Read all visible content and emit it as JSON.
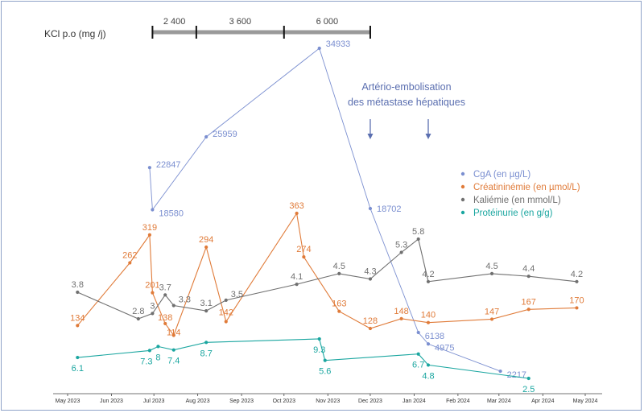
{
  "kcl": {
    "label": "KCl p.o (mg /j)",
    "segments": [
      {
        "value": "2 400",
        "from": "2023-06-30",
        "to": "2023-07-31"
      },
      {
        "value": "3 600",
        "from": "2023-07-31",
        "to": "2023-10-01"
      },
      {
        "value": "6 000",
        "from": "2023-10-01",
        "to": "2023-12-01"
      }
    ]
  },
  "annotation": {
    "line1": "Artério-embolisation",
    "line2": "des métastase hépatiques",
    "arrows": [
      "2023-12-01",
      "2024-01-11"
    ]
  },
  "chart_data": {
    "type": "line",
    "x_axis": {
      "type": "date",
      "ticks": [
        "2023-05-01",
        "2023-06-01",
        "2023-07-01",
        "2023-08-01",
        "2023-09-01",
        "2023-10-01",
        "2023-11-01",
        "2023-12-01",
        "2024-01-01",
        "2024-02-01",
        "2024-03-01",
        "2024-04-01",
        "2024-05-01"
      ],
      "tick_labels": [
        "May 2023",
        "Jun 2023",
        "Jul 2023",
        "Aug 2023",
        "Sep 2023",
        "Oct 2023",
        "Nov 2023",
        "Dec 2023",
        "Jan 2024",
        "Feb 2024",
        "Mar 2024",
        "Apr 2024",
        "May 2024"
      ]
    },
    "grid": false,
    "legend_position": "right",
    "series": [
      {
        "name": "CgA (en µg/L)",
        "color": "#7b8fd0",
        "points": [
          {
            "x": "2023-06-28",
            "y": 22847,
            "label": "22847"
          },
          {
            "x": "2023-06-30",
            "y": 18580,
            "label": "18580"
          },
          {
            "x": "2023-08-07",
            "y": 25959,
            "label": "25959"
          },
          {
            "x": "2023-10-26",
            "y": 34933,
            "label": "34933"
          },
          {
            "x": "2023-12-01",
            "y": 18702,
            "label": "18702"
          },
          {
            "x": "2024-01-04",
            "y": 6138,
            "label": "6138"
          },
          {
            "x": "2024-01-11",
            "y": 4975,
            "label": "4975"
          },
          {
            "x": "2024-03-02",
            "y": 2217,
            "label": "2217"
          }
        ]
      },
      {
        "name": "Créatininémie (en µmol/L)",
        "color": "#e07b39",
        "points": [
          {
            "x": "2023-05-08",
            "y": 134,
            "label": "134"
          },
          {
            "x": "2023-06-14",
            "y": 262,
            "label": "262"
          },
          {
            "x": "2023-06-28",
            "y": 319,
            "label": "319"
          },
          {
            "x": "2023-06-30",
            "y": 201,
            "label": "201"
          },
          {
            "x": "2023-07-09",
            "y": 138,
            "label": "138"
          },
          {
            "x": "2023-07-15",
            "y": 114,
            "label": "114"
          },
          {
            "x": "2023-08-07",
            "y": 294,
            "label": "294"
          },
          {
            "x": "2023-08-21",
            "y": 142,
            "label": "142"
          },
          {
            "x": "2023-10-10",
            "y": 363,
            "label": "363"
          },
          {
            "x": "2023-10-15",
            "y": 274,
            "label": "274"
          },
          {
            "x": "2023-11-09",
            "y": 163,
            "label": "163"
          },
          {
            "x": "2023-12-01",
            "y": 128,
            "label": "128"
          },
          {
            "x": "2023-12-23",
            "y": 148,
            "label": "148"
          },
          {
            "x": "2024-01-11",
            "y": 140,
            "label": "140"
          },
          {
            "x": "2024-02-25",
            "y": 147,
            "label": "147"
          },
          {
            "x": "2024-03-22",
            "y": 167,
            "label": "167"
          },
          {
            "x": "2024-04-25",
            "y": 170,
            "label": "170"
          }
        ]
      },
      {
        "name": "Kaliémie (en mmol/L)",
        "color": "#707070",
        "points": [
          {
            "x": "2023-05-08",
            "y": 3.8,
            "label": "3.8"
          },
          {
            "x": "2023-06-20",
            "y": 2.8,
            "label": "2.8"
          },
          {
            "x": "2023-06-30",
            "y": 3.0,
            "label": "3"
          },
          {
            "x": "2023-07-09",
            "y": 3.7,
            "label": "3.7"
          },
          {
            "x": "2023-07-15",
            "y": 3.3,
            "label": "3.3"
          },
          {
            "x": "2023-08-07",
            "y": 3.1,
            "label": "3.1"
          },
          {
            "x": "2023-08-21",
            "y": 3.5,
            "label": "3.5"
          },
          {
            "x": "2023-10-10",
            "y": 4.1,
            "label": "4.1"
          },
          {
            "x": "2023-11-09",
            "y": 4.5,
            "label": "4.5"
          },
          {
            "x": "2023-12-01",
            "y": 4.3,
            "label": "4.3"
          },
          {
            "x": "2023-12-23",
            "y": 5.3,
            "label": "5.3"
          },
          {
            "x": "2024-01-04",
            "y": 5.8,
            "label": "5.8"
          },
          {
            "x": "2024-01-11",
            "y": 4.2,
            "label": "4.2"
          },
          {
            "x": "2024-02-25",
            "y": 4.5,
            "label": "4.5"
          },
          {
            "x": "2024-03-22",
            "y": 4.4,
            "label": "4.4"
          },
          {
            "x": "2024-04-25",
            "y": 4.2,
            "label": "4.2"
          }
        ]
      },
      {
        "name": "Protéinurie (en g/g)",
        "color": "#1aa6a0",
        "points": [
          {
            "x": "2023-05-08",
            "y": 6.1,
            "label": "6.1"
          },
          {
            "x": "2023-06-28",
            "y": 7.3,
            "label": "7.3"
          },
          {
            "x": "2023-07-04",
            "y": 8.0,
            "label": "8"
          },
          {
            "x": "2023-07-15",
            "y": 7.4,
            "label": "7.4"
          },
          {
            "x": "2023-08-07",
            "y": 8.7,
            "label": "8.7"
          },
          {
            "x": "2023-10-26",
            "y": 9.3,
            "label": "9.3"
          },
          {
            "x": "2023-10-30",
            "y": 5.6,
            "label": "5.6"
          },
          {
            "x": "2024-01-04",
            "y": 6.7,
            "label": "6.7"
          },
          {
            "x": "2024-01-11",
            "y": 4.8,
            "label": "4.8"
          },
          {
            "x": "2024-03-22",
            "y": 2.5,
            "label": "2.5"
          }
        ]
      }
    ]
  }
}
